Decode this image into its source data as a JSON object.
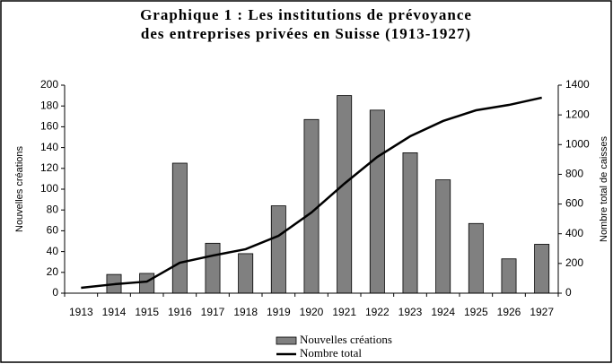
{
  "chart_data": {
    "type": "bar-line",
    "title": [
      "Graphique 1 : Les institutions de prévoyance",
      "des entreprises privées en Suisse (1913-1927)"
    ],
    "ylabel": "Nouvelles créations",
    "y2label": "Nombre total de caisses",
    "categories": [
      "1913",
      "1914",
      "1915",
      "1916",
      "1917",
      "1918",
      "1919",
      "1920",
      "1921",
      "1922",
      "1923",
      "1924",
      "1925",
      "1926",
      "1927"
    ],
    "series": [
      {
        "name": "Nouvelles créations",
        "type": "bar",
        "color": "#808080",
        "values": [
          0,
          18,
          19,
          125,
          48,
          38,
          84,
          167,
          190,
          176,
          135,
          109,
          67,
          33,
          47
        ]
      },
      {
        "name": "Nombre total",
        "type": "line",
        "axis": "y2",
        "color": "#000000",
        "values": [
          36,
          60,
          78,
          205,
          253,
          296,
          386,
          543,
          737,
          917,
          1056,
          1159,
          1231,
          1267,
          1316
        ]
      }
    ],
    "ylim": [
      0,
      200
    ],
    "yticks": [
      0,
      20,
      40,
      60,
      80,
      100,
      120,
      140,
      160,
      180,
      200
    ],
    "y2lim": [
      0,
      1400
    ],
    "y2ticks": [
      0,
      200,
      400,
      600,
      800,
      1000,
      1200,
      1400
    ],
    "legend": "bottom"
  }
}
